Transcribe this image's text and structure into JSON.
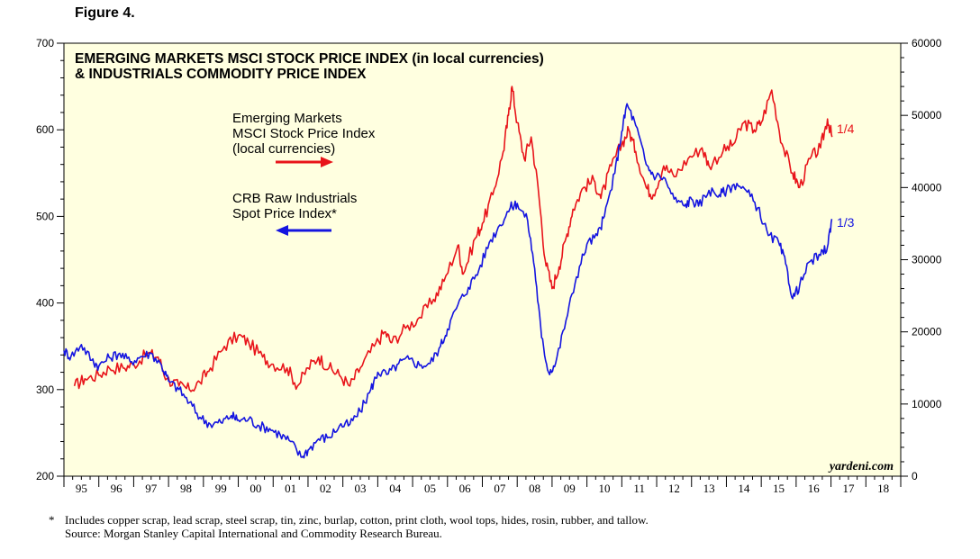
{
  "figure_label": "Figure 4.",
  "footnote": {
    "marker": "*",
    "note": "Includes copper scrap, lead scrap, steel scrap, tin, zinc, burlap, cotton, print cloth, wool tops, hides, rosin, rubber, and tallow.",
    "source": "Source: Morgan Stanley Capital International and Commodity Research Bureau."
  },
  "chart_data": {
    "type": "line",
    "title": "EMERGING MARKETS MSCI STOCK PRICE INDEX (in local currencies)",
    "subtitle": "& INDUSTRIALS COMMODITY PRICE INDEX",
    "watermark": "yardeni.com",
    "x_range": [
      1995,
      2019
    ],
    "x_tick_labels": [
      "95",
      "96",
      "97",
      "98",
      "99",
      "00",
      "01",
      "02",
      "03",
      "04",
      "05",
      "06",
      "07",
      "08",
      "09",
      "10",
      "11",
      "12",
      "13",
      "14",
      "15",
      "16",
      "17",
      "18"
    ],
    "y_left": {
      "range": [
        200,
        700
      ],
      "ticks": [
        200,
        300,
        400,
        500,
        600,
        700
      ]
    },
    "y_right": {
      "range": [
        0,
        60000
      ],
      "ticks": [
        0,
        10000,
        20000,
        30000,
        40000,
        50000,
        60000
      ]
    },
    "colors": {
      "red": "#e8141a",
      "blue": "#1414e0",
      "plot_bg": "#ffffe0"
    },
    "series": [
      {
        "name": "Emerging Markets MSCI Stock Price Index (local currencies)",
        "legend": [
          "Emerging Markets",
          "MSCI Stock Price Index",
          "(local currencies)"
        ],
        "axis": "right",
        "color": "red",
        "end_label": "1/4",
        "points": [
          [
            1995.3,
            12500
          ],
          [
            1995.6,
            13500
          ],
          [
            1996.0,
            14000
          ],
          [
            1996.3,
            15000
          ],
          [
            1996.7,
            15000
          ],
          [
            1997.0,
            15500
          ],
          [
            1997.4,
            17000
          ],
          [
            1997.7,
            16500
          ],
          [
            1997.95,
            13500
          ],
          [
            1998.3,
            12500
          ],
          [
            1998.6,
            12000
          ],
          [
            1998.9,
            13000
          ],
          [
            1999.2,
            15000
          ],
          [
            1999.6,
            18000
          ],
          [
            2000.0,
            19500
          ],
          [
            2000.3,
            18500
          ],
          [
            2000.7,
            16500
          ],
          [
            2001.0,
            15500
          ],
          [
            2001.4,
            15000
          ],
          [
            2001.7,
            12500
          ],
          [
            2002.0,
            15000
          ],
          [
            2002.3,
            16500
          ],
          [
            2002.6,
            15000
          ],
          [
            2002.9,
            14000
          ],
          [
            2003.2,
            12500
          ],
          [
            2003.5,
            15000
          ],
          [
            2003.9,
            18000
          ],
          [
            2004.2,
            20000
          ],
          [
            2004.4,
            18500
          ],
          [
            2004.8,
            20500
          ],
          [
            2005.2,
            22000
          ],
          [
            2005.6,
            24500
          ],
          [
            2005.9,
            27000
          ],
          [
            2006.3,
            32000
          ],
          [
            2006.45,
            28000
          ],
          [
            2006.8,
            33000
          ],
          [
            2007.0,
            35000
          ],
          [
            2007.3,
            39000
          ],
          [
            2007.6,
            45000
          ],
          [
            2007.75,
            50000
          ],
          [
            2007.85,
            54000
          ],
          [
            2008.0,
            49000
          ],
          [
            2008.2,
            44000
          ],
          [
            2008.4,
            47000
          ],
          [
            2008.6,
            40000
          ],
          [
            2008.8,
            30000
          ],
          [
            2009.0,
            26000
          ],
          [
            2009.2,
            29000
          ],
          [
            2009.4,
            33000
          ],
          [
            2009.6,
            37000
          ],
          [
            2009.9,
            40000
          ],
          [
            2010.2,
            41000
          ],
          [
            2010.4,
            38500
          ],
          [
            2010.7,
            43000
          ],
          [
            2011.0,
            46000
          ],
          [
            2011.2,
            48000
          ],
          [
            2011.4,
            45000
          ],
          [
            2011.7,
            40000
          ],
          [
            2011.9,
            39000
          ],
          [
            2012.2,
            43000
          ],
          [
            2012.5,
            41500
          ],
          [
            2012.9,
            44000
          ],
          [
            2013.3,
            45500
          ],
          [
            2013.5,
            43000
          ],
          [
            2013.9,
            45000
          ],
          [
            2014.2,
            46000
          ],
          [
            2014.5,
            49000
          ],
          [
            2014.8,
            48000
          ],
          [
            2015.0,
            49000
          ],
          [
            2015.3,
            53500
          ],
          [
            2015.6,
            46000
          ],
          [
            2015.9,
            42000
          ],
          [
            2016.1,
            40000
          ],
          [
            2016.4,
            44000
          ],
          [
            2016.7,
            45500
          ],
          [
            2016.9,
            49500
          ],
          [
            2017.03,
            47000
          ]
        ]
      },
      {
        "name": "CRB Raw Industrials Spot Price Index*",
        "legend": [
          "CRB Raw Industrials",
          "Spot Price Index*"
        ],
        "axis": "left",
        "color": "blue",
        "end_label": "1/3",
        "points": [
          [
            1995.0,
            345
          ],
          [
            1995.2,
            338
          ],
          [
            1995.5,
            352
          ],
          [
            1995.8,
            334
          ],
          [
            1996.0,
            327
          ],
          [
            1996.3,
            337
          ],
          [
            1996.6,
            342
          ],
          [
            1996.9,
            332
          ],
          [
            1997.2,
            338
          ],
          [
            1997.5,
            342
          ],
          [
            1997.8,
            328
          ],
          [
            1998.0,
            310
          ],
          [
            1998.3,
            300
          ],
          [
            1998.6,
            285
          ],
          [
            1998.9,
            268
          ],
          [
            1999.2,
            260
          ],
          [
            1999.5,
            262
          ],
          [
            1999.8,
            270
          ],
          [
            2000.0,
            265
          ],
          [
            2000.3,
            266
          ],
          [
            2000.6,
            258
          ],
          [
            2000.9,
            255
          ],
          [
            2001.2,
            248
          ],
          [
            2001.5,
            240
          ],
          [
            2001.8,
            222
          ],
          [
            2002.0,
            230
          ],
          [
            2002.3,
            243
          ],
          [
            2002.6,
            245
          ],
          [
            2002.9,
            258
          ],
          [
            2003.2,
            260
          ],
          [
            2003.5,
            275
          ],
          [
            2003.8,
            300
          ],
          [
            2004.0,
            320
          ],
          [
            2004.3,
            318
          ],
          [
            2004.6,
            330
          ],
          [
            2004.9,
            335
          ],
          [
            2005.2,
            328
          ],
          [
            2005.5,
            330
          ],
          [
            2005.8,
            350
          ],
          [
            2006.0,
            370
          ],
          [
            2006.3,
            398
          ],
          [
            2006.6,
            418
          ],
          [
            2006.9,
            438
          ],
          [
            2007.2,
            470
          ],
          [
            2007.5,
            490
          ],
          [
            2007.8,
            510
          ],
          [
            2008.0,
            515
          ],
          [
            2008.3,
            495
          ],
          [
            2008.5,
            440
          ],
          [
            2008.7,
            360
          ],
          [
            2008.9,
            320
          ],
          [
            2009.1,
            330
          ],
          [
            2009.4,
            380
          ],
          [
            2009.7,
            430
          ],
          [
            2010.0,
            468
          ],
          [
            2010.3,
            478
          ],
          [
            2010.5,
            500
          ],
          [
            2010.8,
            550
          ],
          [
            2011.0,
            598
          ],
          [
            2011.15,
            630
          ],
          [
            2011.4,
            605
          ],
          [
            2011.7,
            560
          ],
          [
            2011.9,
            548
          ],
          [
            2012.2,
            545
          ],
          [
            2012.5,
            520
          ],
          [
            2012.8,
            512
          ],
          [
            2013.0,
            520
          ],
          [
            2013.2,
            512
          ],
          [
            2013.5,
            530
          ],
          [
            2013.8,
            525
          ],
          [
            2014.0,
            530
          ],
          [
            2014.3,
            538
          ],
          [
            2014.6,
            528
          ],
          [
            2014.9,
            510
          ],
          [
            2015.2,
            478
          ],
          [
            2015.5,
            470
          ],
          [
            2015.7,
            445
          ],
          [
            2015.9,
            405
          ],
          [
            2016.1,
            420
          ],
          [
            2016.4,
            448
          ],
          [
            2016.7,
            455
          ],
          [
            2016.9,
            465
          ],
          [
            2017.02,
            497
          ]
        ]
      }
    ]
  }
}
